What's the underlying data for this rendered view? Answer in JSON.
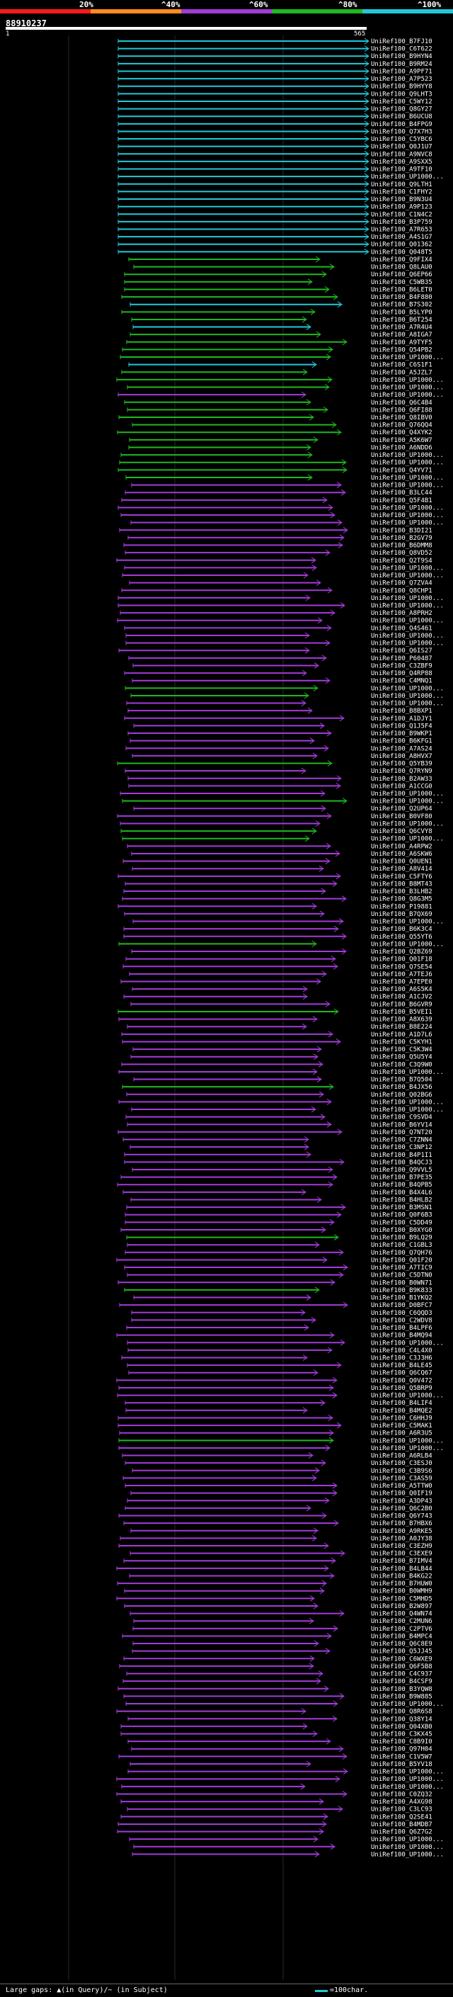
{
  "legend": {
    "ticks": [
      "20%",
      "^40%",
      "^60%",
      "^80%",
      "^100%"
    ],
    "colors": [
      "#ff1a1a",
      "#ff8c1a",
      "#a23bd9",
      "#1fb81f",
      "#22c8d8"
    ]
  },
  "query": {
    "id": "88910237",
    "start": "1",
    "end": "565"
  },
  "hits": [
    {
      "id": "UniRef100_B7FJ10",
      "c": 4
    },
    {
      "id": "UniRef100_C6T622",
      "c": 4
    },
    {
      "id": "UniRef100_B9HYN4",
      "c": 4
    },
    {
      "id": "UniRef100_B9RM24",
      "c": 4
    },
    {
      "id": "UniRef100_A9PF71",
      "c": 4
    },
    {
      "id": "UniRef100_A7P523",
      "c": 4
    },
    {
      "id": "UniRef100_B9HYY8",
      "c": 4
    },
    {
      "id": "UniRef100_Q9LHT3",
      "c": 4
    },
    {
      "id": "UniRef100_C5WY12",
      "c": 4
    },
    {
      "id": "UniRef100_Q8GY27",
      "c": 4
    },
    {
      "id": "UniRef100_B6UCU8",
      "c": 4
    },
    {
      "id": "UniRef100_B4FPG9",
      "c": 4
    },
    {
      "id": "UniRef100_Q7X7H3",
      "c": 4
    },
    {
      "id": "UniRef100_C5YBC6",
      "c": 4
    },
    {
      "id": "UniRef100_Q0J1U7",
      "c": 4
    },
    {
      "id": "UniRef100_A9NVC8",
      "c": 4
    },
    {
      "id": "UniRef100_A9SXX5",
      "c": 4
    },
    {
      "id": "UniRef100_A9TF10",
      "c": 4
    },
    {
      "id": "UniRef100_UP1000...",
      "c": 4
    },
    {
      "id": "UniRef100_Q9LTH1",
      "c": 4
    },
    {
      "id": "UniRef100_C1FHY2",
      "c": 4
    },
    {
      "id": "UniRef100_B9N3U4",
      "c": 4
    },
    {
      "id": "UniRef100_A9P123",
      "c": 4
    },
    {
      "id": "UniRef100_C1N4C2",
      "c": 4
    },
    {
      "id": "UniRef100_B3P759",
      "c": 4
    },
    {
      "id": "UniRef100_A7R653",
      "c": 4
    },
    {
      "id": "UniRef100_A4S1G7",
      "c": 4
    },
    {
      "id": "UniRef100_Q01362",
      "c": 4
    },
    {
      "id": "UniRef100_Q048T5",
      "c": 4
    },
    {
      "id": "UniRef100_Q9FIX4",
      "c": 3
    },
    {
      "id": "UniRef100_Q8LAU0",
      "c": 3
    },
    {
      "id": "UniRef100_Q6EP66",
      "c": 3
    },
    {
      "id": "UniRef100_C5WB35",
      "c": 3
    },
    {
      "id": "UniRef100_B6LET0",
      "c": 3
    },
    {
      "id": "UniRef100_B4F880",
      "c": 3
    },
    {
      "id": "UniRef100_B7S302",
      "c": 4
    },
    {
      "id": "UniRef100_B5LYP0",
      "c": 3
    },
    {
      "id": "UniRef100_B6T254",
      "c": 3
    },
    {
      "id": "UniRef100_A7R4U4",
      "c": 4
    },
    {
      "id": "UniRef100_A8IGA7",
      "c": 3
    },
    {
      "id": "UniRef100_A9TYF5",
      "c": 3
    },
    {
      "id": "UniRef100_Q54PB2",
      "c": 3
    },
    {
      "id": "UniRef100_UP1000...",
      "c": 3
    },
    {
      "id": "UniRef100_C6S1F1",
      "c": 4
    },
    {
      "id": "UniRef100_A5JZL7",
      "c": 3
    },
    {
      "id": "UniRef100_UP1000...",
      "c": 3
    },
    {
      "id": "UniRef100_UP1000...",
      "c": 3
    },
    {
      "id": "UniRef100_UP1000...",
      "c": 2
    },
    {
      "id": "UniRef100_Q6C4B4",
      "c": 3
    },
    {
      "id": "UniRef100_Q6FI88",
      "c": 3
    },
    {
      "id": "UniRef100_Q8IBV0",
      "c": 3
    },
    {
      "id": "UniRef100_Q76QQ4",
      "c": 3
    },
    {
      "id": "UniRef100_Q4XYK2",
      "c": 3
    },
    {
      "id": "UniRef100_A5K6W7",
      "c": 3
    },
    {
      "id": "UniRef100_A6NDD6",
      "c": 3
    },
    {
      "id": "UniRef100_UP1000...",
      "c": 3
    },
    {
      "id": "UniRef100_UP1000...",
      "c": 3
    },
    {
      "id": "UniRef100_Q4YV71",
      "c": 3
    },
    {
      "id": "UniRef100_UP1000...",
      "c": 3
    },
    {
      "id": "UniRef100_UP1000...",
      "c": 2
    },
    {
      "id": "UniRef100_B3LC44",
      "c": 2
    },
    {
      "id": "UniRef100_Q5F4B1",
      "c": 2
    },
    {
      "id": "UniRef100_UP1000...",
      "c": 2
    },
    {
      "id": "UniRef100_UP1000...",
      "c": 2
    },
    {
      "id": "UniRef100_UP1000...",
      "c": 2
    },
    {
      "id": "UniRef100_B3DI21",
      "c": 2
    },
    {
      "id": "UniRef100_B2GV79",
      "c": 2
    },
    {
      "id": "UniRef100_B6DMM8",
      "c": 2
    },
    {
      "id": "UniRef100_Q8VD52",
      "c": 2
    },
    {
      "id": "UniRef100_Q2T9S4",
      "c": 2
    },
    {
      "id": "UniRef100_UP1000...",
      "c": 2
    },
    {
      "id": "UniRef100_UP1000...",
      "c": 2
    },
    {
      "id": "UniRef100_Q7ZVA4",
      "c": 2
    },
    {
      "id": "UniRef100_Q8CHP1",
      "c": 2
    },
    {
      "id": "UniRef100_UP1000...",
      "c": 2
    },
    {
      "id": "UniRef100_UP1000...",
      "c": 2
    },
    {
      "id": "UniRef100_A8PRH2",
      "c": 2
    },
    {
      "id": "UniRef100_UP1000...",
      "c": 2
    },
    {
      "id": "UniRef100_Q4S461",
      "c": 2
    },
    {
      "id": "UniRef100_UP1000...",
      "c": 2
    },
    {
      "id": "UniRef100_UP1000...",
      "c": 2
    },
    {
      "id": "UniRef100_Q6IS27",
      "c": 2
    },
    {
      "id": "UniRef100_P60487",
      "c": 2
    },
    {
      "id": "UniRef100_C3ZBF9",
      "c": 2
    },
    {
      "id": "UniRef100_Q4RP88",
      "c": 2
    },
    {
      "id": "UniRef100_C4MNQ1",
      "c": 2
    },
    {
      "id": "UniRef100_UP1000...",
      "c": 3
    },
    {
      "id": "UniRef100_UP1000...",
      "c": 3
    },
    {
      "id": "UniRef100_UP1000...",
      "c": 2
    },
    {
      "id": "UniRef100_B8BXP1",
      "c": 2
    },
    {
      "id": "UniRef100_A1DJY1",
      "c": 2
    },
    {
      "id": "UniRef100_Q1J5F4",
      "c": 2
    },
    {
      "id": "UniRef100_B9WKP1",
      "c": 2
    },
    {
      "id": "UniRef100_B6KFG1",
      "c": 2
    },
    {
      "id": "UniRef100_A7AS24",
      "c": 2
    },
    {
      "id": "UniRef100_A8HVX7",
      "c": 2
    },
    {
      "id": "UniRef100_Q5YB39",
      "c": 3
    },
    {
      "id": "UniRef100_Q7RYN9",
      "c": 2
    },
    {
      "id": "UniRef100_B2AW33",
      "c": 2
    },
    {
      "id": "UniRef100_A1CCG0",
      "c": 2
    },
    {
      "id": "UniRef100_UP1000...",
      "c": 2
    },
    {
      "id": "UniRef100_UP1000...",
      "c": 3
    },
    {
      "id": "UniRef100_Q2UP64",
      "c": 2
    },
    {
      "id": "UniRef100_B0VF80",
      "c": 2
    },
    {
      "id": "UniRef100_UP1000...",
      "c": 2
    },
    {
      "id": "UniRef100_Q6CVY8",
      "c": 3
    },
    {
      "id": "UniRef100_UP1000...",
      "c": 3
    },
    {
      "id": "UniRef100_A4RPW2",
      "c": 2
    },
    {
      "id": "UniRef100_A6SKW6",
      "c": 2
    },
    {
      "id": "UniRef100_Q0UEN1",
      "c": 2
    },
    {
      "id": "UniRef100_A8V414",
      "c": 2
    },
    {
      "id": "UniRef100_C5FTY6",
      "c": 2
    },
    {
      "id": "UniRef100_B8MT43",
      "c": 2
    },
    {
      "id": "UniRef100_B3LHB2",
      "c": 2
    },
    {
      "id": "UniRef100_Q8G3M5",
      "c": 2
    },
    {
      "id": "UniRef100_P19881",
      "c": 2
    },
    {
      "id": "UniRef100_B7QX69",
      "c": 2
    },
    {
      "id": "UniRef100_UP1000...",
      "c": 2
    },
    {
      "id": "UniRef100_B6K3C4",
      "c": 2
    },
    {
      "id": "UniRef100_Q55YT6",
      "c": 2
    },
    {
      "id": "UniRef100_UP1000...",
      "c": 3
    },
    {
      "id": "UniRef100_Q2BZ69",
      "c": 2
    },
    {
      "id": "UniRef100_Q01F18",
      "c": 2
    },
    {
      "id": "UniRef100_Q7SE54",
      "c": 2
    },
    {
      "id": "UniRef100_A7TEJ6",
      "c": 2
    },
    {
      "id": "UniRef100_A7EPE0",
      "c": 2
    },
    {
      "id": "UniRef100_A6S5K4",
      "c": 2
    },
    {
      "id": "UniRef100_A1CJV2",
      "c": 2
    },
    {
      "id": "UniRef100_B6GVR9",
      "c": 2
    },
    {
      "id": "UniRef100_B5VEI1",
      "c": 3
    },
    {
      "id": "UniRef100_A8X639",
      "c": 2
    },
    {
      "id": "UniRef100_B8E224",
      "c": 2
    },
    {
      "id": "UniRef100_A1D7L6",
      "c": 2
    },
    {
      "id": "UniRef100_C5KYH1",
      "c": 2
    },
    {
      "id": "UniRef100_C5K3W4",
      "c": 2
    },
    {
      "id": "UniRef100_Q5U5Y4",
      "c": 2
    },
    {
      "id": "UniRef100_C3Q9W0",
      "c": 2
    },
    {
      "id": "UniRef100_UP1000...",
      "c": 2
    },
    {
      "id": "UniRef100_B7Q504",
      "c": 2
    },
    {
      "id": "UniRef100_B4JX56",
      "c": 3
    },
    {
      "id": "UniRef100_Q02BG6",
      "c": 2
    },
    {
      "id": "UniRef100_UP1000...",
      "c": 2
    },
    {
      "id": "UniRef100_UP1000...",
      "c": 2
    },
    {
      "id": "UniRef100_C9SVD4",
      "c": 2
    },
    {
      "id": "UniRef100_B6YV14",
      "c": 2
    },
    {
      "id": "UniRef100_Q7NT20",
      "c": 2
    },
    {
      "id": "UniRef100_C7ZNN4",
      "c": 2
    },
    {
      "id": "UniRef100_C3NP12",
      "c": 2
    },
    {
      "id": "UniRef100_B4P1I1",
      "c": 2
    },
    {
      "id": "UniRef100_B4QCJ3",
      "c": 2
    },
    {
      "id": "UniRef100_Q9VVL5",
      "c": 2
    },
    {
      "id": "UniRef100_B7PE35",
      "c": 2
    },
    {
      "id": "UniRef100_B4QPB5",
      "c": 2
    },
    {
      "id": "UniRef100_B4X4L6",
      "c": 2
    },
    {
      "id": "UniRef100_B4HLB2",
      "c": 2
    },
    {
      "id": "UniRef100_B3MSN1",
      "c": 2
    },
    {
      "id": "UniRef100_Q0F6B3",
      "c": 2
    },
    {
      "id": "UniRef100_C5DD49",
      "c": 2
    },
    {
      "id": "UniRef100_B0XYG0",
      "c": 2
    },
    {
      "id": "UniRef100_B9LQ29",
      "c": 3
    },
    {
      "id": "UniRef100_C1GBL3",
      "c": 2
    },
    {
      "id": "UniRef100_Q7QH76",
      "c": 2
    },
    {
      "id": "UniRef100_Q01F20",
      "c": 2
    },
    {
      "id": "UniRef100_A7TIC9",
      "c": 2
    },
    {
      "id": "UniRef100_C5DTN0",
      "c": 2
    },
    {
      "id": "UniRef100_B0WN71",
      "c": 2
    },
    {
      "id": "UniRef100_B9K833",
      "c": 3
    },
    {
      "id": "UniRef100_B1YKQ2",
      "c": 2
    },
    {
      "id": "UniRef100_D0BFC7",
      "c": 2
    },
    {
      "id": "UniRef100_C6QQD3",
      "c": 2
    },
    {
      "id": "UniRef100_C2WDV8",
      "c": 2
    },
    {
      "id": "UniRef100_B4LPF6",
      "c": 2
    },
    {
      "id": "UniRef100_B4MQ94",
      "c": 2
    },
    {
      "id": "UniRef100_UP1000...",
      "c": 2
    },
    {
      "id": "UniRef100_C4L4X0",
      "c": 2
    },
    {
      "id": "UniRef100_C3J3H6",
      "c": 2
    },
    {
      "id": "UniRef100_B4LE45",
      "c": 2
    },
    {
      "id": "UniRef100_Q6CQ67",
      "c": 2
    },
    {
      "id": "UniRef100_Q0V472",
      "c": 2
    },
    {
      "id": "UniRef100_Q5BRP9",
      "c": 2
    },
    {
      "id": "UniRef100_UP1000...",
      "c": 2
    },
    {
      "id": "UniRef100_B4LIF4",
      "c": 2
    },
    {
      "id": "UniRef100_B4MQE2",
      "c": 2
    },
    {
      "id": "UniRef100_C6HHJ9",
      "c": 2
    },
    {
      "id": "UniRef100_C5MAK1",
      "c": 2
    },
    {
      "id": "UniRef100_A6R3U5",
      "c": 2
    },
    {
      "id": "UniRef100_UP1000...",
      "c": 3
    },
    {
      "id": "UniRef100_UP1000...",
      "c": 2
    },
    {
      "id": "UniRef100_A6RLB4",
      "c": 2
    },
    {
      "id": "UniRef100_C3ESJ0",
      "c": 2
    },
    {
      "id": "UniRef100_C3B9S6",
      "c": 2
    },
    {
      "id": "UniRef100_C3AS59",
      "c": 2
    },
    {
      "id": "UniRef100_A5TTW0",
      "c": 2
    },
    {
      "id": "UniRef100_Q0IF19",
      "c": 2
    },
    {
      "id": "UniRef100_A3DP43",
      "c": 2
    },
    {
      "id": "UniRef100_Q6C2B0",
      "c": 2
    },
    {
      "id": "UniRef100_Q6Y743",
      "c": 2
    },
    {
      "id": "UniRef100_B7HBX6",
      "c": 2
    },
    {
      "id": "UniRef100_A9RKE5",
      "c": 2
    },
    {
      "id": "UniRef100_A0JY38",
      "c": 2
    },
    {
      "id": "UniRef100_C3EZH9",
      "c": 2
    },
    {
      "id": "UniRef100_C3EXE9",
      "c": 2
    },
    {
      "id": "UniRef100_B7IMV4",
      "c": 2
    },
    {
      "id": "UniRef100_B4LB44",
      "c": 2
    },
    {
      "id": "UniRef100_B4KG22",
      "c": 2
    },
    {
      "id": "UniRef100_B7HUW0",
      "c": 2
    },
    {
      "id": "UniRef100_B0WMH9",
      "c": 2
    },
    {
      "id": "UniRef100_C5MHD5",
      "c": 2
    },
    {
      "id": "UniRef100_B2W897",
      "c": 2
    },
    {
      "id": "UniRef100_Q4WN74",
      "c": 2
    },
    {
      "id": "UniRef100_C2MUN6",
      "c": 2
    },
    {
      "id": "UniRef100_C2PTV6",
      "c": 2
    },
    {
      "id": "UniRef100_B4MPC4",
      "c": 2
    },
    {
      "id": "UniRef100_Q6C8E9",
      "c": 2
    },
    {
      "id": "UniRef100_Q5JJ45",
      "c": 2
    },
    {
      "id": "UniRef100_C6WXE9",
      "c": 2
    },
    {
      "id": "UniRef100_Q6F5B8",
      "c": 2
    },
    {
      "id": "UniRef100_C4C937",
      "c": 2
    },
    {
      "id": "UniRef100_B4CSF9",
      "c": 2
    },
    {
      "id": "UniRef100_B3YQW8",
      "c": 2
    },
    {
      "id": "UniRef100_B9W885",
      "c": 2
    },
    {
      "id": "UniRef100_UP1000...",
      "c": 2
    },
    {
      "id": "UniRef100_Q8R6S8",
      "c": 2
    },
    {
      "id": "UniRef100_Q38Y14",
      "c": 2
    },
    {
      "id": "UniRef100_Q04XB0",
      "c": 2
    },
    {
      "id": "UniRef100_C3KX45",
      "c": 2
    },
    {
      "id": "UniRef100_C8B9I0",
      "c": 2
    },
    {
      "id": "UniRef100_Q97H04",
      "c": 2
    },
    {
      "id": "UniRef100_C1V5W7",
      "c": 2
    },
    {
      "id": "UniRef100_B5YV18",
      "c": 2
    },
    {
      "id": "UniRef100_UP1000...",
      "c": 2
    },
    {
      "id": "UniRef100_UP1000...",
      "c": 2
    },
    {
      "id": "UniRef100_UP1000...",
      "c": 2
    },
    {
      "id": "UniRef100_C0ZQ32",
      "c": 2
    },
    {
      "id": "UniRef100_A4XG98",
      "c": 2
    },
    {
      "id": "UniRef100_C3LC93",
      "c": 2
    },
    {
      "id": "UniRef100_Q2SE41",
      "c": 2
    },
    {
      "id": "UniRef100_B4MDB7",
      "c": 2
    },
    {
      "id": "UniRef100_Q6Z7G2",
      "c": 2
    },
    {
      "id": "UniRef100_UP1000...",
      "c": 2
    },
    {
      "id": "UniRef100_UP1000...",
      "c": 2
    },
    {
      "id": "UniRef100_UP1000...",
      "c": 2
    }
  ],
  "footer": {
    "gaps_label": "Large gaps: ▲(in Query)/~ (in Subject)",
    "scale_label": "=100char."
  }
}
